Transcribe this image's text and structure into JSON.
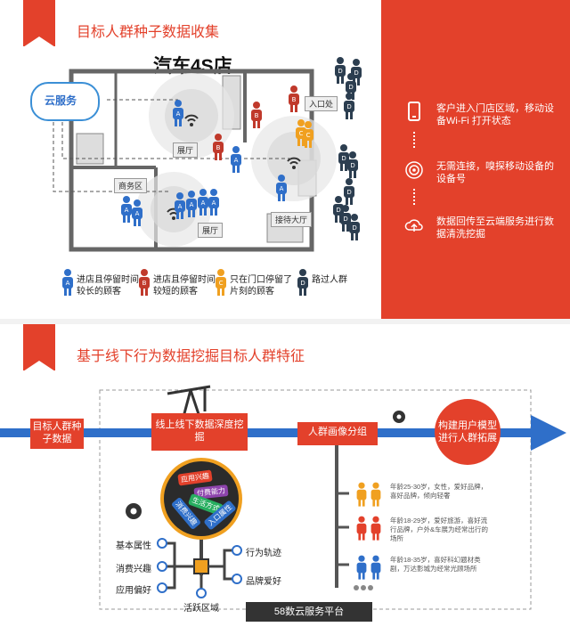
{
  "top": {
    "title": "目标人群种子数据收集",
    "store_title": "汽车4S店",
    "cloud_label": "云服务",
    "rooms": {
      "entrance": "入口处",
      "showroom_top": "展厅",
      "business": "商务区",
      "showroom_bottom": "展厅",
      "reception": "接待大厅"
    },
    "legend": [
      {
        "letter": "A",
        "label": "进店且停留时间较长的顾客",
        "color": "#2f6fc9"
      },
      {
        "letter": "B",
        "label": "进店且停留时间较短的顾客",
        "color": "#c0392b"
      },
      {
        "letter": "C",
        "label": "只在门口停留了片刻的顾客",
        "color": "#f0a020"
      },
      {
        "letter": "D",
        "label": "路过人群",
        "color": "#2c3e50"
      }
    ],
    "steps": [
      {
        "text": "客户进入门店区域，移动设备Wi-Fi 打开状态",
        "icon": "phone-icon"
      },
      {
        "text": "无需连接，嗅探移动设备的设备号",
        "icon": "signal-icon"
      },
      {
        "text": "数据回传至云端服务进行数据清洗挖掘",
        "icon": "cloud-upload-icon"
      }
    ],
    "accent": "#e3412b"
  },
  "bottom": {
    "title": "基于线下行为数据挖掘目标人群特征",
    "flow": {
      "start": "目标人群种子数据",
      "step1": "线上线下数据深度挖掘",
      "step2": "人群画像分组",
      "end": "构建用户模型进行人群拓展"
    },
    "tags": [
      "应用兴趣",
      "付费能力",
      "生活方式",
      "消费兴趣",
      "入口属性"
    ],
    "features_left": [
      "基本属性",
      "消费兴趣",
      "应用偏好"
    ],
    "features_right": [
      "行为轨迹",
      "品牌爱好"
    ],
    "feature_bottom": "活跃区域",
    "platform": "58数云服务平台",
    "personas": [
      {
        "text": "年龄25-30岁，女性，爱好品牌，喜好品牌，倾向轻奢",
        "color": "#f0a020"
      },
      {
        "text": "年龄18-29岁，爱好旅游，喜好流行品牌，户外&车展为经常出行的场所",
        "color": "#e3412b"
      },
      {
        "text": "年龄18-35岁，喜好科幻题材类剧，万达影城为经常光顾场所",
        "color": "#2f6fc9"
      }
    ],
    "arrow_color": "#2f6fc9"
  }
}
